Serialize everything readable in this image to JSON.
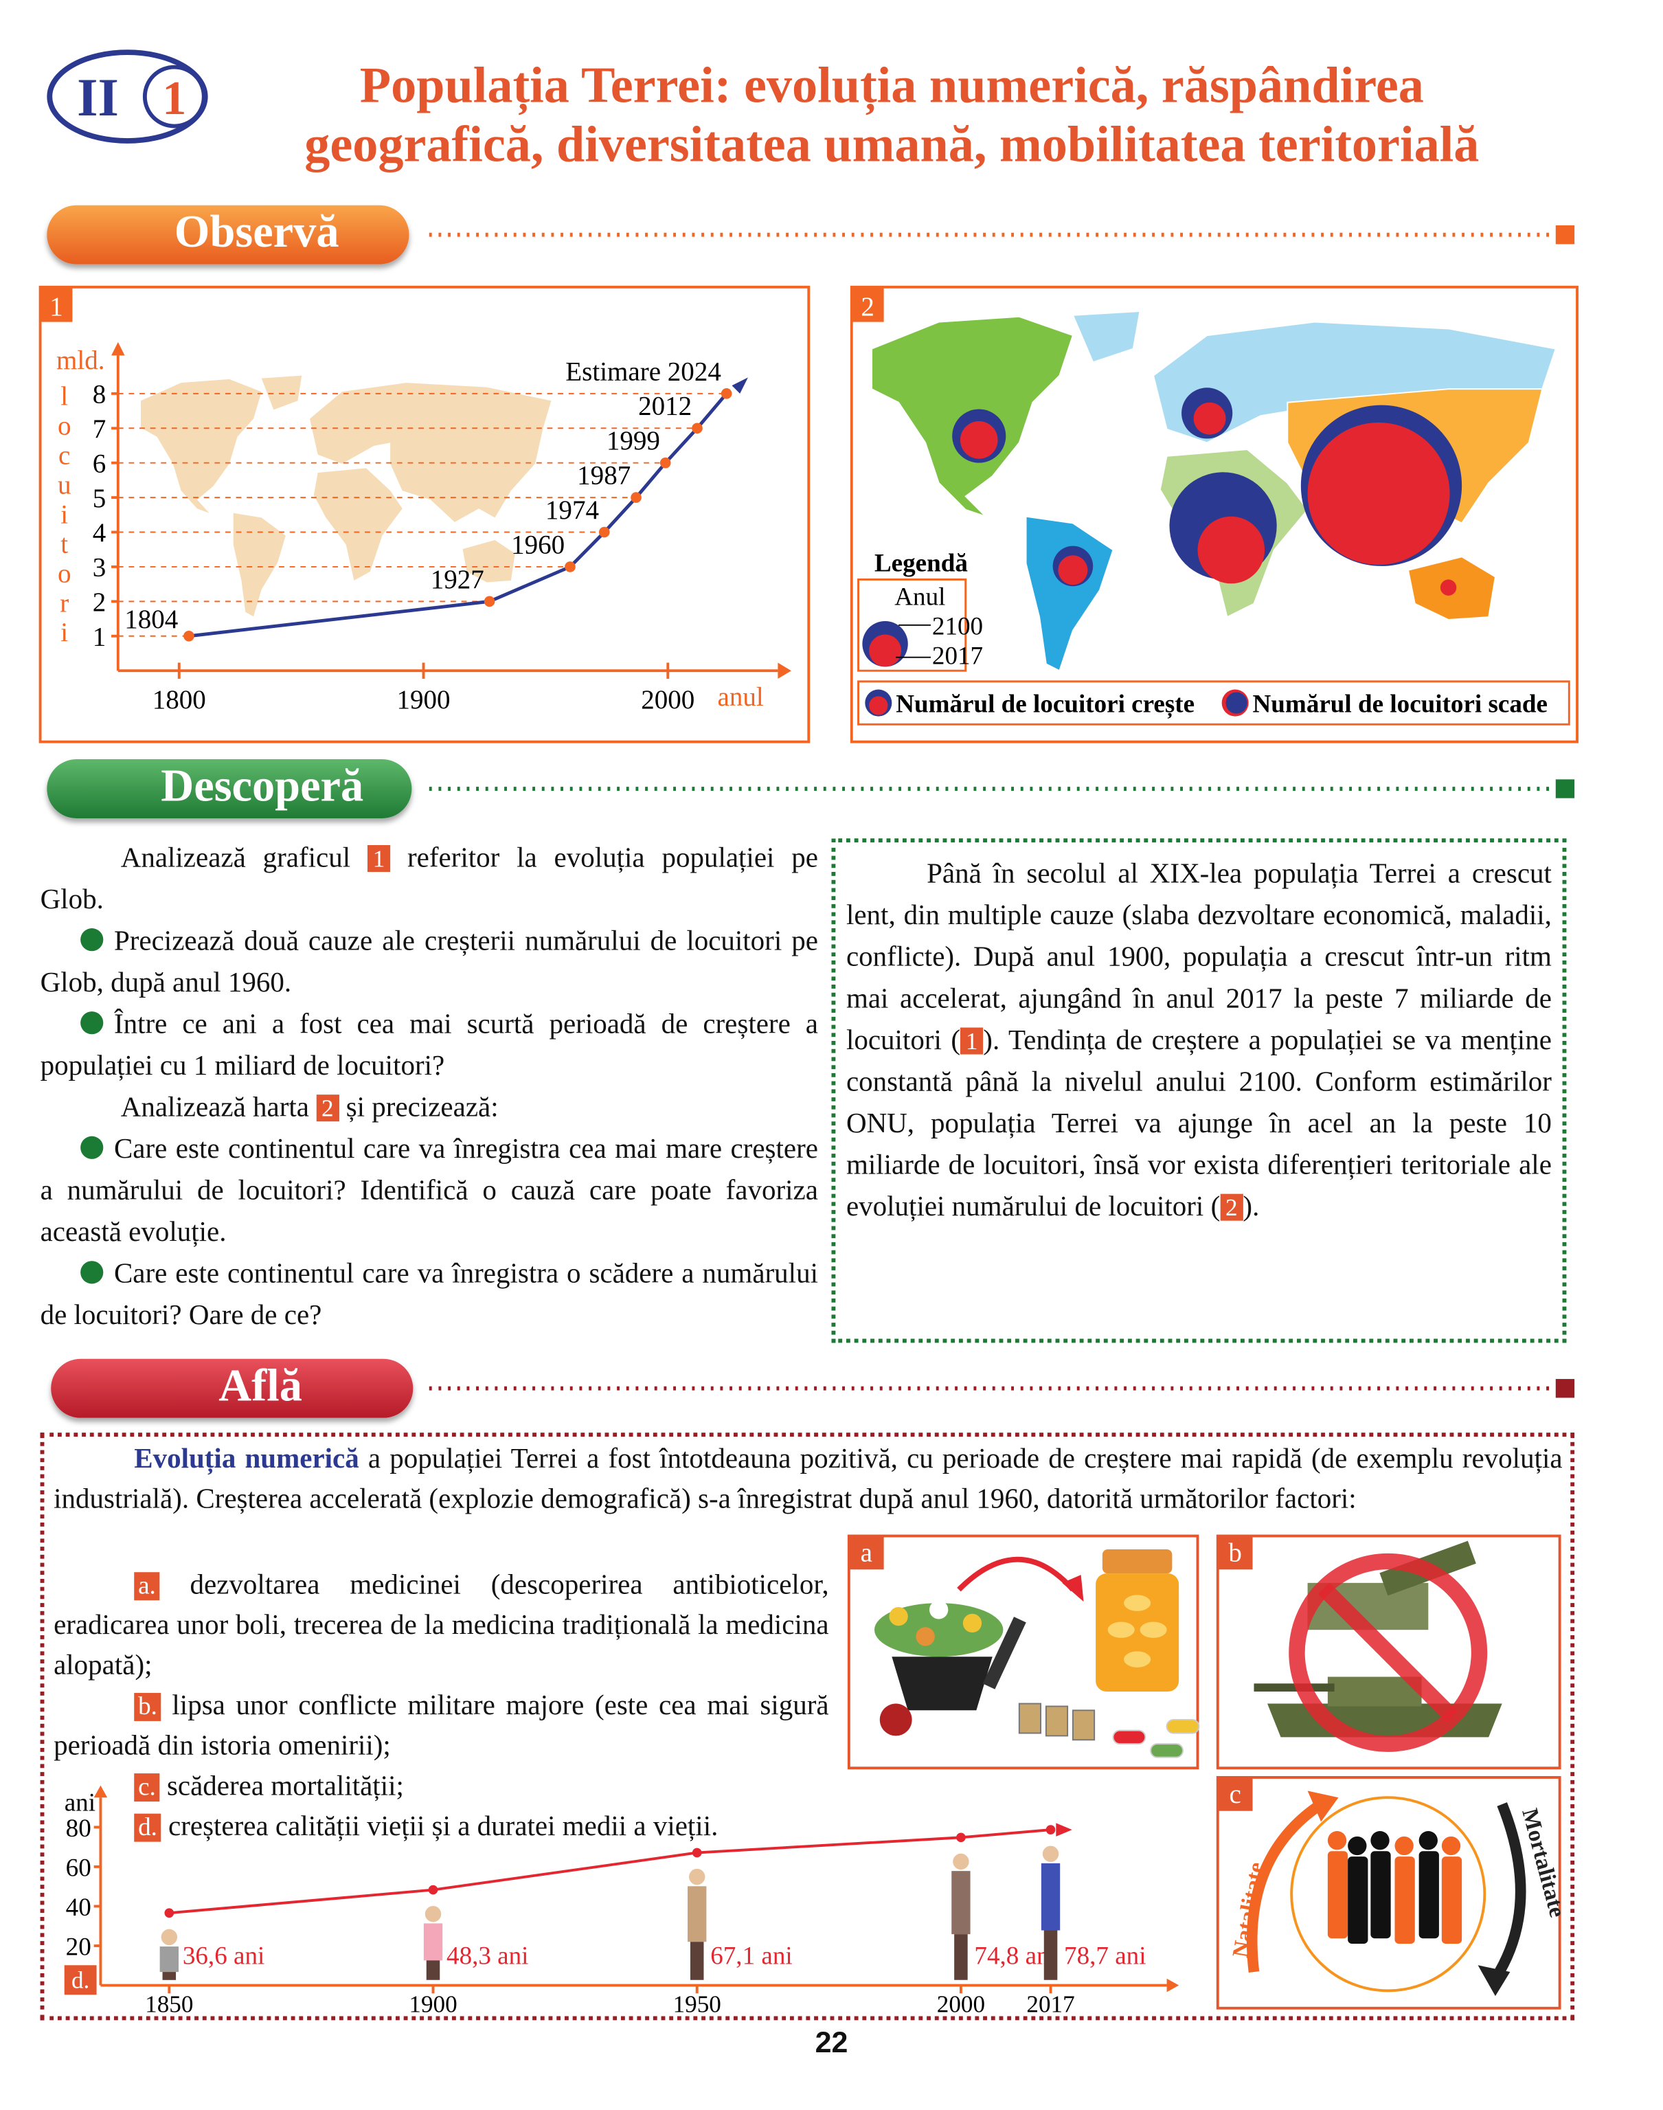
{
  "header": {
    "section": "II",
    "lesson": "1",
    "title_line1": "Populația Terrei: evoluția numerică, răspândirea",
    "title_line2": "geografică, diversitatea umană, mobilitatea teritorială"
  },
  "observa": {
    "heading": "Observă"
  },
  "figure1": {
    "type": "line",
    "number": "1",
    "y_unit": "mld.",
    "y_label": "locuitori",
    "x_label": "anul",
    "xlim": [
      1775,
      2045
    ],
    "ylim": [
      0,
      9.1
    ],
    "xticks": [
      1800,
      1900,
      2000
    ],
    "yticks": [
      1,
      2,
      3,
      4,
      5,
      6,
      7,
      8
    ],
    "grid": true,
    "x": [
      1804,
      1927,
      1960,
      1974,
      1987,
      1999,
      2012,
      2024
    ],
    "values": [
      1,
      2,
      3,
      4,
      5,
      6,
      7,
      8
    ],
    "point_labels": [
      "1804",
      "1927",
      "1960",
      "1974",
      "1987",
      "1999",
      "2012",
      "Estimare 2024"
    ],
    "line_color": "#2b3990",
    "point_color": "#f26522"
  },
  "figure2": {
    "number": "2",
    "legend_title": "Legendă",
    "legend_subtitle": "Anul",
    "legend_outer": "2100",
    "legend_inner": "2017",
    "key_growth": "Numărul de locuitori crește",
    "key_decline": "Numărul de locuitori scade"
  },
  "descopera": {
    "heading": "Descoperă",
    "graph_intro": [
      "Analizează graficul ",
      "1",
      " referitor la evoluția populației pe Glob."
    ],
    "graph_questions": [
      "Precizează două cauze ale creșterii numărului de locuitori pe Glob, după anul 1960.",
      "Între ce ani a fost cea mai scurtă perioadă de creștere a populației cu 1 miliard de locuitori?"
    ],
    "map_intro": [
      "Analizează harta ",
      "2",
      " și precizează:"
    ],
    "map_questions": [
      "Care este continentul care va înregistra cea mai mare creștere a numărului de locuitori? Identifică o cauză care poate favoriza această evoluție.",
      "Care este continentul care va înregistra o scădere a numărului de locuitori? Oare de ce?"
    ],
    "box": [
      "Până în secolul al XIX-lea populația Terrei a crescut lent, din multiple cauze (slaba dezvoltare economică, maladii, conflicte). După anul 1900, populația a crescut într-un ritm mai accelerat, ajungând în anul 2017 la peste 7 miliarde de locuitori (",
      "1",
      "). Tendința de creștere a populației se va menține constantă până la nivelul anului 2100. Conform estimărilor ONU, populația Terrei va ajunge în acel an la peste 10 miliarde de locuitori, însă vor exista diferențieri teritoriale ale evoluției numărului de locuitori (",
      "2",
      ")."
    ]
  },
  "afla": {
    "heading": "Află",
    "intro_bold": "Evoluția numerică",
    "intro_rest": " a populației Terrei a fost întotdeauna pozitivă, cu perioade de creștere mai rapidă (de exemplu revoluția industrială). Creșterea accelerată (explozie demografică) s-a înregistrat după anul 1960, datorită următorilor factori:",
    "factors": [
      {
        "letter": "a.",
        "text": " dezvoltarea medicinei (descoperirea antibioticelor, eradicarea unor boli, trecerea de la medicina tradițională la medicina alopată);"
      },
      {
        "letter": "b.",
        "text": " lipsa unor conflicte militare majore (este cea mai sigură perioadă din istoria omenirii);"
      },
      {
        "letter": "c.",
        "text": " scăderea mortalității;"
      },
      {
        "letter": "d.",
        "text": " creșterea calității vieții și a duratei medii a vieții."
      }
    ],
    "photo_labels": [
      "a",
      "b",
      "c"
    ],
    "natality": "Natalitate",
    "mortality": "Mortalitate"
  },
  "life_chart": {
    "type": "line",
    "label": "d.",
    "y_label": "ani",
    "xlim": [
      1837,
      2039
    ],
    "ylim": [
      0,
      95
    ],
    "yticks": [
      20,
      40,
      60,
      80
    ],
    "xticks": [
      1850,
      1900,
      1950,
      2000,
      2017
    ],
    "x": [
      1850,
      1900,
      1950,
      2000,
      2017
    ],
    "values": [
      36.6,
      48.3,
      67.1,
      74.8,
      78.7
    ],
    "value_labels": [
      "36,6 ani",
      "48,3 ani",
      "67,1 ani",
      "74,8 ani",
      "78,7 ani"
    ],
    "color": "#e3262f"
  },
  "page_number": "22"
}
